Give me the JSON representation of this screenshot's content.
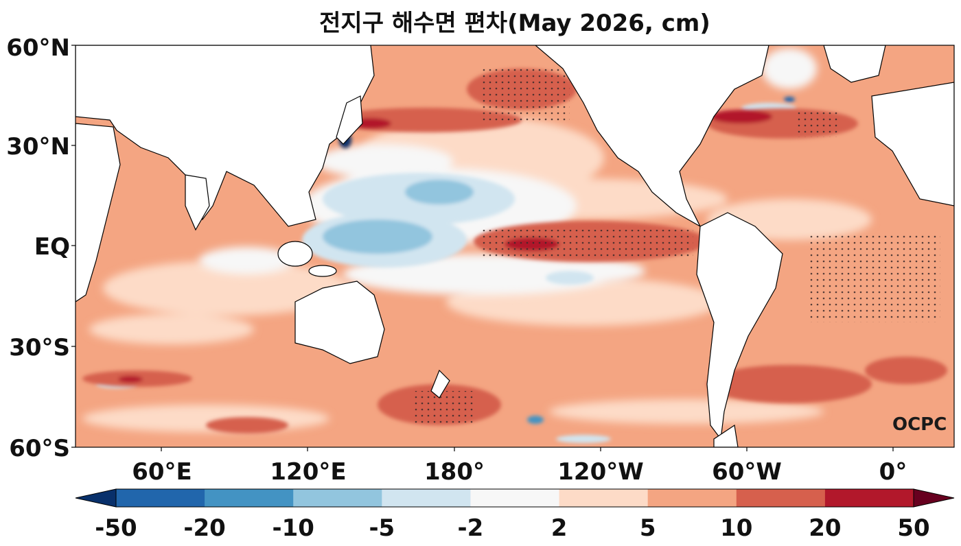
{
  "title": "전지구 해수면 편차(May 2026, cm)",
  "watermark": "OCPC",
  "lat_labels": [
    "60°N",
    "30°N",
    "EQ",
    "30°S",
    "60°S"
  ],
  "lon_labels": [
    "60°E",
    "120°E",
    "180°",
    "120°W",
    "60°W",
    "0°"
  ],
  "colorbar": {
    "ticks": [
      "-50",
      "-20",
      "-10",
      "-5",
      "-2",
      "2",
      "5",
      "10",
      "20",
      "50"
    ],
    "colors": [
      "#08306b",
      "#2166ac",
      "#4393c3",
      "#92c5de",
      "#d1e5f0",
      "#f7f7f7",
      "#fddbc7",
      "#f4a582",
      "#d6604d",
      "#b2182b",
      "#67001f"
    ]
  },
  "land_color": "#ffffff",
  "stipple_color": "#3a2a2a"
}
